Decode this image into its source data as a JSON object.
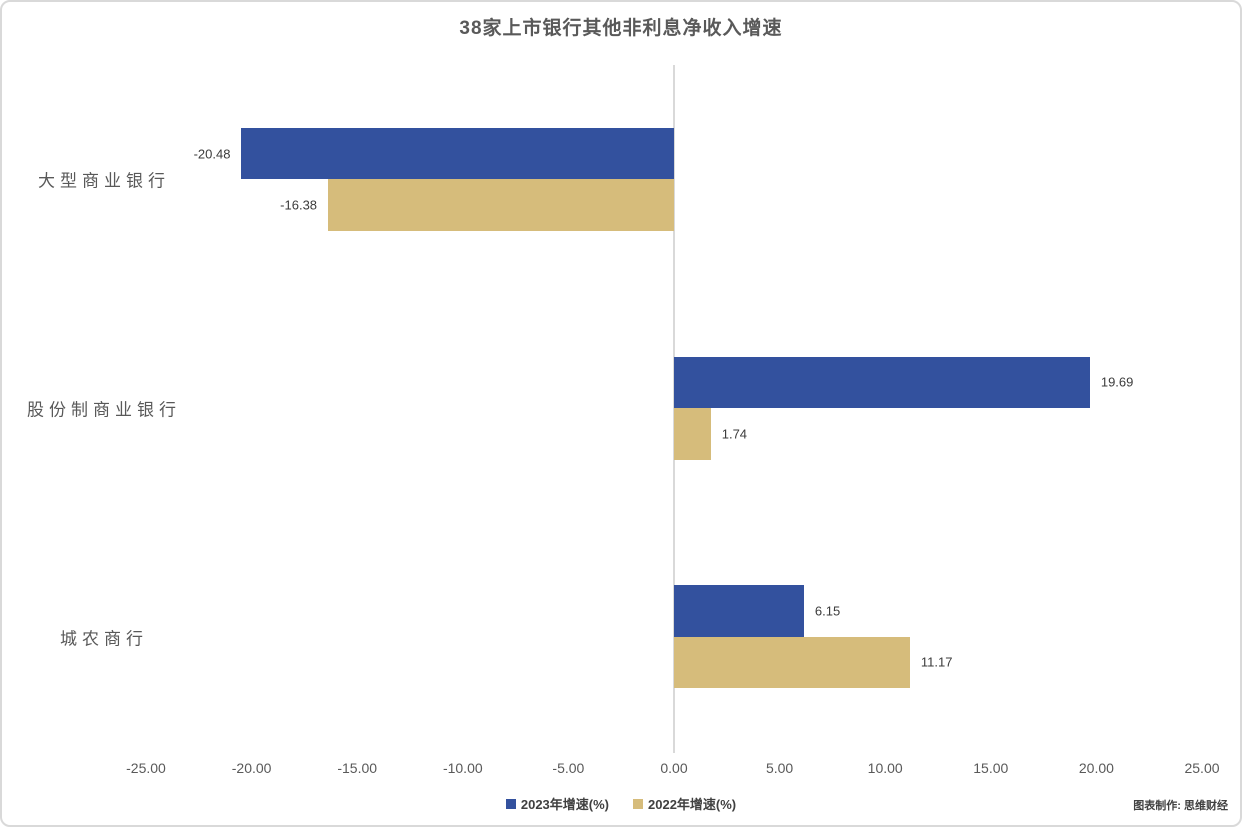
{
  "title": "38家上市银行其他非利息净收入增速",
  "credit": "图表制作: 思维财经",
  "chart_data": {
    "type": "bar",
    "orientation": "horizontal",
    "title": "38家上市银行其他非利息净收入增速",
    "categories": [
      "大型商业银行",
      "股份制商业银行",
      "城农商行"
    ],
    "series": [
      {
        "name": "2023年增速(%)",
        "color": "#33519E",
        "values": [
          -20.48,
          19.69,
          6.15
        ]
      },
      {
        "name": "2022年增速(%)",
        "color": "#D6BC7B",
        "values": [
          -16.38,
          1.74,
          11.17
        ]
      }
    ],
    "xlim": [
      -25,
      25
    ],
    "x_ticks": [
      "-25.00",
      "-20.00",
      "-15.00",
      "-10.00",
      "-5.00",
      "0.00",
      "5.00",
      "10.00",
      "15.00",
      "20.00",
      "25.00"
    ],
    "value_label_decimals": 2,
    "grid": false,
    "legend_position": "bottom",
    "axis_color": "#D9D9D9",
    "text_color": "#595959"
  }
}
